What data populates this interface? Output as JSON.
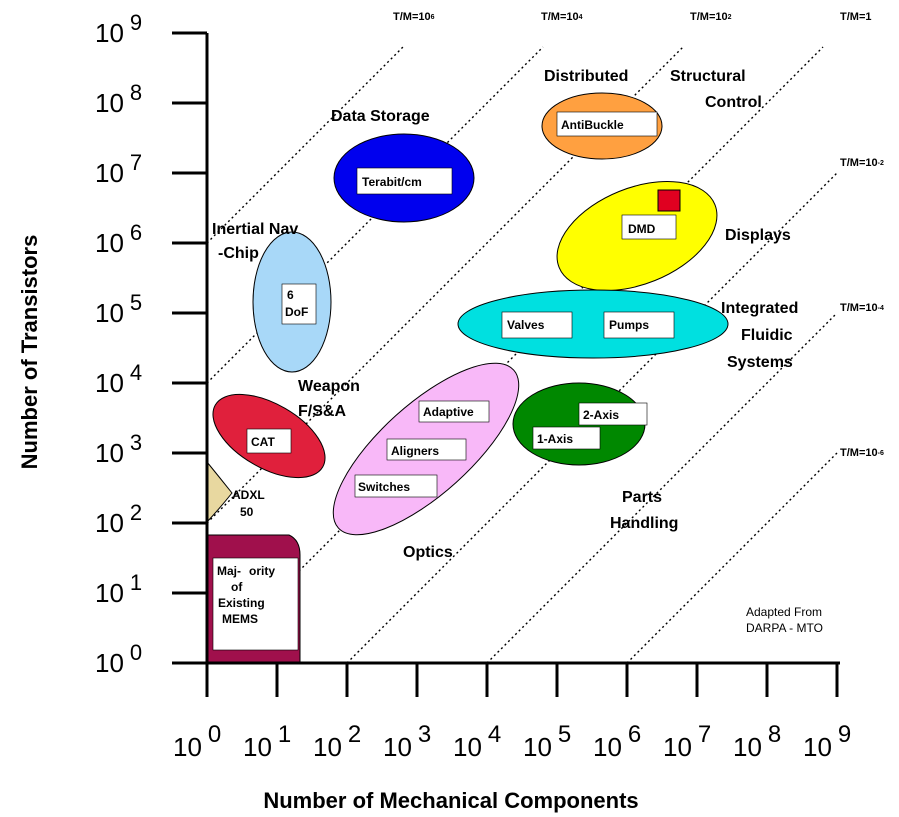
{
  "chart_data": {
    "type": "scatter",
    "xlabel": "Number of Mechanical Components",
    "ylabel": "Number of Transistors",
    "xscale": "log",
    "yscale": "log",
    "xlim": [
      1,
      1000000000
    ],
    "ylim": [
      1,
      1000000000
    ],
    "x_ticks": [
      {
        "base": "10",
        "exp": "0"
      },
      {
        "base": "10",
        "exp": "1"
      },
      {
        "base": "10",
        "exp": "2"
      },
      {
        "base": "10",
        "exp": "3"
      },
      {
        "base": "10",
        "exp": "4"
      },
      {
        "base": "10",
        "exp": "5"
      },
      {
        "base": "10",
        "exp": "6"
      },
      {
        "base": "10",
        "exp": "7"
      },
      {
        "base": "10",
        "exp": "8"
      },
      {
        "base": "10",
        "exp": "9"
      }
    ],
    "y_ticks": [
      {
        "base": "10",
        "exp": "0"
      },
      {
        "base": "10",
        "exp": "1"
      },
      {
        "base": "10",
        "exp": "2"
      },
      {
        "base": "10",
        "exp": "3"
      },
      {
        "base": "10",
        "exp": "4"
      },
      {
        "base": "10",
        "exp": "5"
      },
      {
        "base": "10",
        "exp": "6"
      },
      {
        "base": "10",
        "exp": "7"
      },
      {
        "base": "10",
        "exp": "8"
      },
      {
        "base": "10",
        "exp": "9"
      }
    ],
    "ratio_lines": [
      {
        "label": "T/M=10",
        "sup": "6",
        "log_ratio": 6
      },
      {
        "label": "T/M=10",
        "sup": "4",
        "log_ratio": 4
      },
      {
        "label": "T/M=10",
        "sup": "2",
        "log_ratio": 2
      },
      {
        "label": "T/M=1",
        "sup": "",
        "log_ratio": 0
      },
      {
        "label": "T/M=10",
        "sup": "-2",
        "log_ratio": -2
      },
      {
        "label": "T/M=10",
        "sup": "-4",
        "log_ratio": -4
      },
      {
        "label": "T/M=10",
        "sup": "-6",
        "log_ratio": -6
      }
    ],
    "regions": [
      {
        "name": "Data Storage",
        "color": "#0000ee",
        "boxes": [
          "Terabit/cm"
        ],
        "x_range": [
          100,
          8000
        ],
        "y_range": [
          2000000,
          30000000
        ]
      },
      {
        "name": "Distributed Structural Control",
        "color": "#ffa040",
        "boxes": [
          "AntiBuckle"
        ],
        "x_range": [
          25000,
          2500000
        ],
        "y_range": [
          12000000,
          250000000
        ]
      },
      {
        "name": "Displays",
        "color": "#ffff00",
        "boxes": [
          "DMD"
        ],
        "x_range": [
          25000,
          15000000
        ],
        "y_range": [
          300000,
          8000000
        ]
      },
      {
        "name": "Inertial Nav -Chip",
        "color": "#a8d8f8",
        "boxes": [
          "6 DoF"
        ],
        "x_range": [
          4,
          40
        ],
        "y_range": [
          8000,
          1200000
        ]
      },
      {
        "name": "Integrated Fluidic Systems",
        "color": "#00e0e0",
        "boxes": [
          "Valves",
          "Pumps"
        ],
        "x_range": [
          2000,
          20000000
        ],
        "y_range": [
          25000,
          200000
        ]
      },
      {
        "name": "Weapon F/S&A",
        "color": "#e0203c",
        "boxes": [
          "CAT"
        ],
        "x_range": [
          1.5,
          100
        ],
        "y_range": [
          600,
          10000
        ]
      },
      {
        "name": "Optics",
        "color": "#f8b8f8",
        "boxes": [
          "Adaptive",
          "Aligners",
          "Switches"
        ],
        "x_range": [
          100,
          40000
        ],
        "y_range": [
          100,
          20000
        ]
      },
      {
        "name": "Parts Handling",
        "color": "#008800",
        "boxes": [
          "2-Axis",
          "1-Axis"
        ],
        "x_range": [
          20000,
          5000000
        ],
        "y_range": [
          600,
          12000
        ]
      },
      {
        "name": "ADXL 50",
        "color": "#e8d8a0",
        "boxes": [],
        "x_range": [
          1,
          2
        ],
        "y_range": [
          100,
          600
        ]
      },
      {
        "name": "Majority of Existing MEMS",
        "color": "#a0104c",
        "boxes": [
          "Majority of Existing MEMS"
        ],
        "x_range": [
          1,
          30
        ],
        "y_range": [
          1,
          60
        ]
      }
    ],
    "category_labels": {
      "data_storage": "Data Storage",
      "distributed": "Distributed",
      "structural": "Structural",
      "control": "Control",
      "displays": "Displays",
      "inertial_nav": "Inertial Nav",
      "chip": "-Chip",
      "integrated": "Integrated",
      "fluidic": "Fluidic",
      "systems": "Systems",
      "weapon": "Weapon",
      "fsa": "F/S&A",
      "optics": "Optics",
      "parts": "Parts",
      "handling": "Handling",
      "adxl": "ADXL",
      "adxl_num": "50"
    },
    "box_labels": {
      "terabit": "Terabit/cm",
      "antibuckle": "AntiBuckle",
      "dmd": "DMD",
      "dof_6": "6",
      "dof_label": "DoF",
      "valves": "Valves",
      "pumps": "Pumps",
      "adaptive": "Adaptive",
      "aligners": "Aligners",
      "switches": "Switches",
      "axis2": "2-Axis",
      "axis1": "1-Axis",
      "cat": "CAT",
      "mems1": "Maj-",
      "mems2": "ority",
      "mems3": "of",
      "mems4": "Existing",
      "mems5": "MEMS"
    },
    "note": [
      "Adapted From",
      "DARPA -  MTO"
    ],
    "colors": {
      "dmd_marker": "#e00020"
    }
  }
}
